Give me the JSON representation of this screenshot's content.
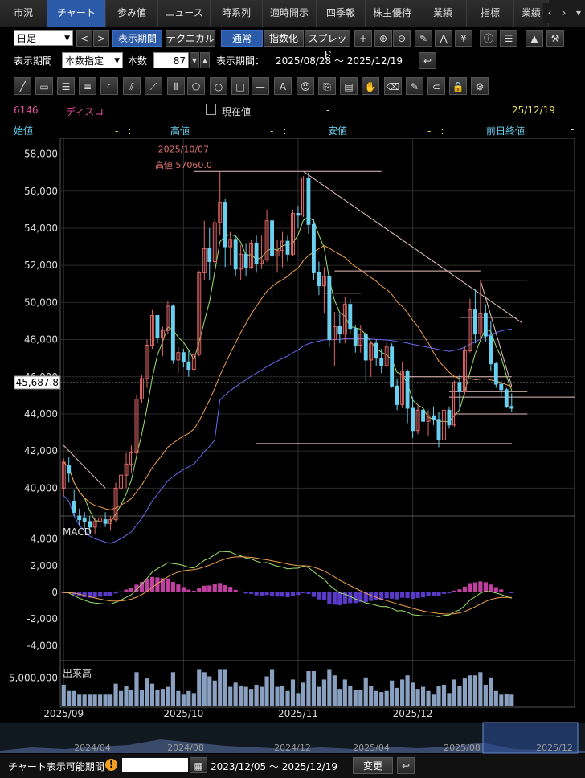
{
  "tabs": [
    "市況",
    "チャート",
    "歩み値",
    "ニュース",
    "時系列",
    "適時開示",
    "四季報",
    "株主優待",
    "業績",
    "指標",
    "業績"
  ],
  "active_tab": 1,
  "toolbar": {
    "period": "日足",
    "prev": "<",
    "next": ">",
    "show_period": "表示期間",
    "technical": "テクニカル",
    "normal": "通常",
    "indexed": "指数化",
    "spread": "スプレッド"
  },
  "period_row": {
    "label": "表示期間",
    "mode": "本数指定",
    "count_label": "本数",
    "count": "87",
    "range_label": "表示期間：",
    "range": "2025/08/28 ～ 2025/12/19"
  },
  "stock": {
    "code": "6146",
    "name": "ディスコ",
    "current_label": "現在値",
    "current": "-",
    "date": "25/12/19",
    "open_label": "始値",
    "open": "-　:",
    "high_label": "高値",
    "high": "-　:",
    "low_label": "安値",
    "low": "-　:",
    "prev_label": "前日終値",
    "prev": "-"
  },
  "colors": {
    "up": "#e06666",
    "down": "#6ad0f0",
    "ma_short": "#9be06a",
    "ma_mid": "#f0a050",
    "ma_long": "#6a6af0",
    "macd_pos": "#c040a0",
    "macd_neg": "#5a3ac8"
  },
  "chart_data": [
    {
      "type": "candlestick",
      "ylim": [
        38500,
        58500
      ],
      "yticks": [
        "58,000",
        "56,000",
        "54,000",
        "52,000",
        "50,000",
        "48,000",
        "46,000",
        "44,000",
        "42,000",
        "40,000"
      ],
      "ytick_values": [
        58000,
        56000,
        54000,
        52000,
        50000,
        48000,
        46000,
        44000,
        42000,
        40000
      ],
      "price_tag": "45,687.8",
      "annotation": {
        "date": "2025/10/07",
        "text": "高値 57060.0"
      },
      "xticks": [
        "2025/09",
        "2025/10",
        "2025/11",
        "2025/12"
      ],
      "candles": [
        [
          40000,
          41600,
          39600,
          41400
        ],
        [
          41200,
          41700,
          40300,
          40800
        ],
        [
          39300,
          39900,
          38500,
          38700
        ],
        [
          38500,
          38900,
          38000,
          38300
        ],
        [
          38400,
          38700,
          37800,
          38200
        ],
        [
          38200,
          38500,
          37600,
          37900
        ],
        [
          37900,
          38400,
          37500,
          38200
        ],
        [
          38200,
          38600,
          37900,
          38400
        ],
        [
          38300,
          38700,
          37900,
          38100
        ],
        [
          38100,
          38500,
          37700,
          38300
        ],
        [
          38300,
          40300,
          38200,
          40000
        ],
        [
          40000,
          41000,
          39600,
          40700
        ],
        [
          40700,
          41900,
          40000,
          41300
        ],
        [
          41300,
          42300,
          40800,
          41900
        ],
        [
          41900,
          45000,
          41800,
          44800
        ],
        [
          44800,
          46100,
          44600,
          45900
        ],
        [
          45900,
          48000,
          45400,
          47700
        ],
        [
          47700,
          49600,
          47500,
          49300
        ],
        [
          49300,
          49300,
          47800,
          48100
        ],
        [
          48100,
          48700,
          47100,
          48500
        ],
        [
          48500,
          50100,
          48300,
          49800
        ],
        [
          49800,
          49900,
          46700,
          46900
        ],
        [
          46900,
          47600,
          46200,
          47300
        ],
        [
          47300,
          47500,
          46500,
          46800
        ],
        [
          46800,
          47400,
          46000,
          46400
        ],
        [
          46400,
          47400,
          46200,
          47200
        ],
        [
          47200,
          51700,
          47100,
          51600
        ],
        [
          51600,
          54400,
          51200,
          52900
        ],
        [
          52900,
          54000,
          51200,
          52200
        ],
        [
          52200,
          54500,
          52100,
          54300
        ],
        [
          54300,
          57060,
          53600,
          55400
        ],
        [
          55400,
          55600,
          51900,
          53000
        ],
        [
          53000,
          53800,
          52000,
          53400
        ],
        [
          53400,
          53600,
          51400,
          51800
        ],
        [
          51800,
          53100,
          51200,
          52600
        ],
        [
          52600,
          53200,
          51400,
          51900
        ],
        [
          51900,
          53400,
          51800,
          53200
        ],
        [
          53200,
          53600,
          51600,
          52100
        ],
        [
          52100,
          53600,
          51800,
          52300
        ],
        [
          52300,
          55000,
          52200,
          54400
        ],
        [
          54400,
          54400,
          50000,
          52500
        ],
        [
          52500,
          53400,
          51600,
          52800
        ],
        [
          52800,
          53800,
          51900,
          53300
        ],
        [
          53300,
          53600,
          52200,
          52600
        ],
        [
          52600,
          55000,
          52500,
          54800
        ],
        [
          54800,
          55200,
          54000,
          54700
        ],
        [
          54700,
          56800,
          54600,
          56700
        ],
        [
          56700,
          57000,
          53700,
          54200
        ],
        [
          54200,
          54500,
          51200,
          51600
        ],
        [
          51600,
          52200,
          50400,
          50900
        ],
        [
          50900,
          51900,
          49400,
          51400
        ],
        [
          51400,
          51500,
          47600,
          48000
        ],
        [
          48000,
          49500,
          46600,
          48700
        ],
        [
          48700,
          49400,
          47800,
          48300
        ],
        [
          48300,
          50300,
          47800,
          49900
        ],
        [
          49900,
          50200,
          48300,
          48600
        ],
        [
          48600,
          48800,
          47300,
          47700
        ],
        [
          47700,
          48800,
          47300,
          48300
        ],
        [
          48300,
          48400,
          45700,
          46900
        ],
        [
          46900,
          47900,
          46000,
          47800
        ],
        [
          47800,
          48000,
          46600,
          47000
        ],
        [
          47000,
          47500,
          46200,
          46600
        ],
        [
          46600,
          47900,
          46500,
          47600
        ],
        [
          47600,
          47800,
          45400,
          45500
        ],
        [
          45500,
          45900,
          44200,
          44500
        ],
        [
          44500,
          46800,
          44300,
          46300
        ],
        [
          46300,
          46400,
          43500,
          44300
        ],
        [
          44300,
          44900,
          42700,
          43100
        ],
        [
          43100,
          44500,
          42900,
          44200
        ],
        [
          44200,
          44800,
          43000,
          43600
        ],
        [
          43600,
          44200,
          42800,
          43900
        ],
        [
          43900,
          44400,
          43400,
          43700
        ],
        [
          43700,
          44100,
          42200,
          42600
        ],
        [
          42600,
          44500,
          42500,
          44200
        ],
        [
          44200,
          44400,
          43200,
          43400
        ],
        [
          43400,
          45800,
          43300,
          45700
        ],
        [
          45700,
          46100,
          44200,
          45200
        ],
        [
          45200,
          47600,
          45000,
          47400
        ],
        [
          47400,
          50200,
          47300,
          49600
        ],
        [
          49600,
          50700,
          47800,
          48300
        ],
        [
          48300,
          51200,
          48000,
          49400
        ],
        [
          49400,
          49900,
          47900,
          48200
        ],
        [
          48200,
          49000,
          46300,
          46700
        ],
        [
          46700,
          46800,
          45400,
          45600
        ],
        [
          45600,
          45800,
          44900,
          45300
        ],
        [
          45300,
          45400,
          44300,
          44400
        ],
        [
          44400,
          45100,
          44100,
          44300
        ]
      ]
    },
    {
      "type": "line",
      "title": "MACD",
      "ylim": [
        -5000,
        5000
      ],
      "yticks": [
        "4,000",
        "2,000",
        "0",
        "-2,000",
        "-4,000"
      ],
      "ytick_values": [
        4000,
        2000,
        0,
        -2000,
        -4000
      ]
    },
    {
      "type": "bar",
      "title": "出来高",
      "ylim": [
        0,
        7000000
      ],
      "yticks": [
        "5,000,000"
      ],
      "ytick_values": [
        5000000
      ]
    }
  ],
  "overview": {
    "labels": [
      "2024/04",
      "2024/08",
      "2024/12",
      "2025/04",
      "2025/08",
      "2025/12"
    ]
  },
  "bottom": {
    "label": "チャート表示可能期間",
    "range": "2023/12/05 ～ 2025/12/19",
    "change": "変更"
  }
}
